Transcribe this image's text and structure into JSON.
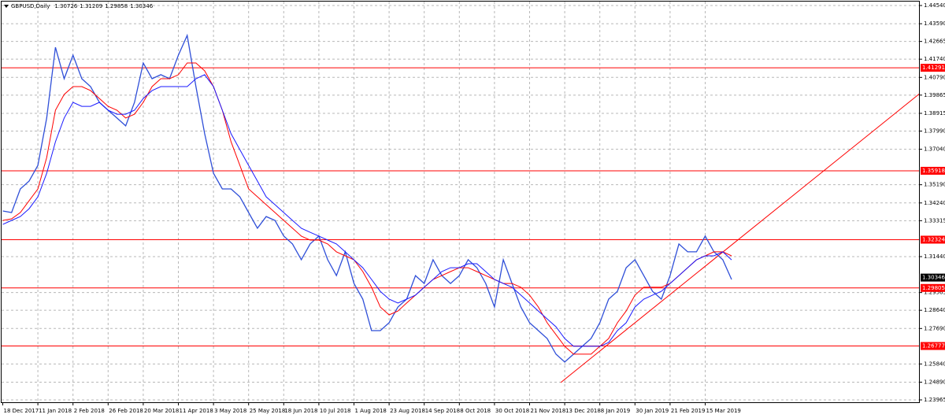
{
  "chart_data": {
    "type": "line",
    "title": "GBPUSD,Daily",
    "header_values": [
      1.30726,
      1.31209,
      1.29858,
      1.30346
    ],
    "categories": [
      "18 Dec 2017",
      null,
      null,
      null,
      "11 Jan 2018",
      null,
      null,
      null,
      "2 Feb 2018",
      null,
      null,
      null,
      "26 Feb 2018",
      null,
      null,
      null,
      "20 Mar 2018",
      null,
      null,
      null,
      "11 Apr 2018",
      null,
      null,
      null,
      "3 May 2018",
      null,
      null,
      null,
      "25 May 2018",
      null,
      null,
      null,
      "18 Jun 2018",
      null,
      null,
      null,
      "10 Jul 2018",
      null,
      null,
      null,
      "1 Aug 2018",
      null,
      null,
      null,
      "23 Aug 2018",
      null,
      null,
      null,
      "14 Sep 2018",
      null,
      null,
      null,
      "8 Oct 2018",
      null,
      null,
      null,
      "30 Oct 2018",
      null,
      null,
      null,
      "21 Nov 2018",
      null,
      null,
      null,
      "13 Dec 2018",
      null,
      null,
      null,
      "8 Jan 2019",
      null,
      null,
      null,
      "30 Jan 2019",
      null,
      null,
      null,
      "21 Feb 2019",
      null,
      null,
      null,
      "15 Mar 2019",
      null,
      null,
      null
    ],
    "series": [
      {
        "color": "#2f4fd8",
        "values": [
          1.3382,
          1.3374,
          1.3497,
          1.3538,
          1.362,
          1.3867,
          1.4236,
          1.4072,
          1.4195,
          1.4072,
          1.4031,
          1.3949,
          1.3908,
          1.3867,
          1.3826,
          1.3949,
          1.4154,
          1.4072,
          1.4093,
          1.4072,
          1.4195,
          1.4298,
          1.4031,
          1.3785,
          1.3579,
          1.3497,
          1.3497,
          1.3456,
          1.3374,
          1.3292,
          1.3353,
          1.3333,
          1.3251,
          1.321,
          1.3128,
          1.321,
          1.3251,
          1.3128,
          1.3045,
          1.3169,
          1.3004,
          1.2922,
          1.2758,
          1.2758,
          1.2799,
          1.2881,
          1.2922,
          1.3045,
          1.3004,
          1.3128,
          1.3045,
          1.3004,
          1.3045,
          1.3128,
          1.3086,
          1.3004,
          1.2881,
          1.3128,
          1.3004,
          1.2881,
          1.2799,
          1.2758,
          1.2717,
          1.2635,
          1.2594,
          1.2635,
          1.2676,
          1.2717,
          1.2799,
          1.2922,
          1.2963,
          1.3086,
          1.3128,
          1.3045,
          1.2963,
          1.2922,
          1.3045,
          1.321,
          1.3169,
          1.3169,
          1.3251,
          1.3169,
          1.3128,
          1.3025
        ]
      },
      {
        "color": "#ff0000",
        "values": [
          1.3333,
          1.3341,
          1.3374,
          1.3436,
          1.3497,
          1.3661,
          1.3908,
          1.399,
          1.4031,
          1.4031,
          1.401,
          1.3969,
          1.3928,
          1.3908,
          1.3867,
          1.3887,
          1.3949,
          1.4031,
          1.4072,
          1.4072,
          1.4093,
          1.4154,
          1.4154,
          1.4113,
          1.4031,
          1.3908,
          1.3743,
          1.362,
          1.3497,
          1.3456,
          1.3415,
          1.3374,
          1.3333,
          1.3292,
          1.3251,
          1.323,
          1.323,
          1.321,
          1.3169,
          1.3148,
          1.3127,
          1.3066,
          1.2984,
          1.2881,
          1.284,
          1.286,
          1.2902,
          1.2943,
          1.2984,
          1.3025,
          1.3045,
          1.3066,
          1.3086,
          1.3086,
          1.3066,
          1.3045,
          1.3025,
          1.3004,
          1.3004,
          1.2984,
          1.2943,
          1.2881,
          1.2799,
          1.2737,
          1.2676,
          1.2635,
          1.2635,
          1.2635,
          1.2676,
          1.2717,
          1.2799,
          1.286,
          1.2943,
          1.2984,
          1.2984,
          1.2984,
          1.3004,
          1.3045,
          1.3086,
          1.3127,
          1.3148,
          1.3169,
          1.3169,
          1.3148
        ]
      },
      {
        "color": "#1a1aff",
        "values": [
          1.3312,
          1.3333,
          1.3353,
          1.3394,
          1.3456,
          1.3579,
          1.3743,
          1.3867,
          1.3949,
          1.3928,
          1.3928,
          1.3949,
          1.3908,
          1.3887,
          1.3887,
          1.3908,
          1.3969,
          1.401,
          1.4031,
          1.4031,
          1.4031,
          1.4031,
          1.4072,
          1.4093,
          1.4031,
          1.3908,
          1.3785,
          1.3702,
          1.362,
          1.3538,
          1.3456,
          1.3415,
          1.3374,
          1.3333,
          1.3292,
          1.3271,
          1.3251,
          1.323,
          1.321,
          1.3169,
          1.3127,
          1.3086,
          1.3025,
          1.2963,
          1.2922,
          1.2902,
          1.2922,
          1.2943,
          1.2984,
          1.3025,
          1.3066,
          1.3086,
          1.3086,
          1.3107,
          1.3107,
          1.3066,
          1.3025,
          1.3004,
          1.2984,
          1.2943,
          1.2902,
          1.286,
          1.2819,
          1.2778,
          1.2717,
          1.2676,
          1.2676,
          1.2676,
          1.2676,
          1.2696,
          1.2758,
          1.2799,
          1.2881,
          1.2922,
          1.2943,
          1.2963,
          1.3004,
          1.3045,
          1.3086,
          1.3127,
          1.3148,
          1.3148,
          1.3169,
          1.3127
        ]
      }
    ],
    "levels": [
      1.41291,
      1.35918,
      1.32324,
      1.29805,
      1.26777
    ],
    "level_color": "#ff0000",
    "current_price": 1.30346,
    "trendline": [
      1.2487,
      1.3995
    ],
    "ylim": [
      1.23965,
      1.4454
    ],
    "yticks": [
      {
        "value": 1.4454,
        "label": "1.44540"
      },
      {
        "value": 1.4359,
        "label": "1.43590"
      },
      1.42665,
      {
        "value": 1.4174,
        "label": "1.41740"
      },
      {
        "value": 1.4079,
        "label": "1.40790"
      },
      1.39865,
      1.38915,
      {
        "value": 1.3799,
        "label": "1.37990"
      },
      {
        "value": 1.3704,
        "label": "1.37040"
      },
      {
        "value": 1.3519,
        "label": "1.35190"
      },
      {
        "value": 1.3424,
        "label": "1.34240"
      },
      1.33315,
      {
        "value": 1.3144,
        "label": "1.31440"
      },
      1.29565,
      {
        "value": 1.2864,
        "label": "1.28640"
      },
      {
        "value": 1.2769,
        "label": "1.27690"
      },
      {
        "value": 1.2584,
        "label": "1.25840"
      },
      {
        "value": 1.2489,
        "label": "1.24890"
      },
      1.23965
    ],
    "grid": true
  }
}
